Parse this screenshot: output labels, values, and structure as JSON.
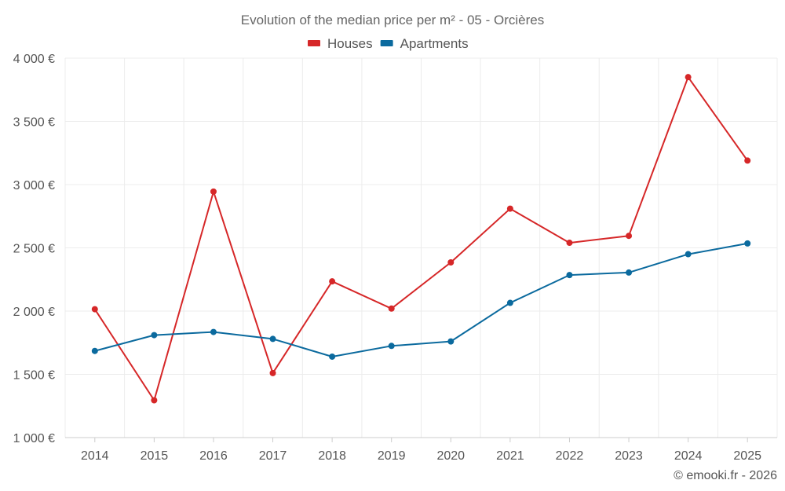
{
  "chart_data": {
    "type": "line",
    "title": "Evolution of the median price per m² - 05 - Orcières",
    "categories": [
      "2014",
      "2015",
      "2016",
      "2017",
      "2018",
      "2019",
      "2020",
      "2021",
      "2022",
      "2023",
      "2024",
      "2025"
    ],
    "series": [
      {
        "name": "Houses",
        "color": "#d62728",
        "values": [
          2015,
          1295,
          2945,
          1510,
          2235,
          2020,
          2385,
          2810,
          2540,
          2595,
          3850,
          3190
        ]
      },
      {
        "name": "Apartments",
        "color": "#0b6a9e",
        "values": [
          1685,
          1810,
          1835,
          1780,
          1640,
          1725,
          1760,
          2065,
          2285,
          2305,
          2450,
          2535
        ]
      }
    ],
    "yticks": [
      1000,
      1500,
      2000,
      2500,
      3000,
      3500,
      4000
    ],
    "ytick_labels": [
      "1 000 €",
      "1 500 €",
      "2 000 €",
      "2 500 €",
      "3 000 €",
      "3 500 €",
      "4 000 €"
    ],
    "ylim": [
      1000,
      4000
    ],
    "xlabel": "",
    "ylabel": "",
    "grid": true,
    "legend": "top-center"
  },
  "credit": "© emooki.fr - 2026"
}
